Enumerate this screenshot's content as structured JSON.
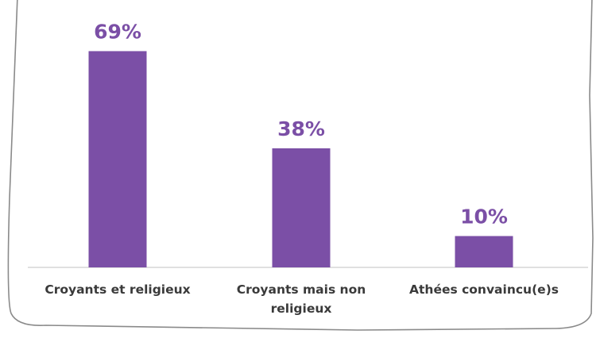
{
  "colors": {
    "bar": "#7b4fa6",
    "value_label": "#7b4fa6",
    "category_label": "#3a3a3a",
    "baseline": "#d6d6d6",
    "frame": "#8a8a8a"
  },
  "chart_data": {
    "type": "bar",
    "categories": [
      [
        "Croyants et religieux"
      ],
      [
        "Croyants mais non",
        "religieux"
      ],
      [
        "Athées convaincu(e)s"
      ]
    ],
    "values": [
      69,
      38,
      10
    ],
    "value_labels": [
      "69%",
      "38%",
      "10%"
    ],
    "unit": "%",
    "ylim": [
      0,
      100
    ],
    "grid": false,
    "legend": false
  }
}
